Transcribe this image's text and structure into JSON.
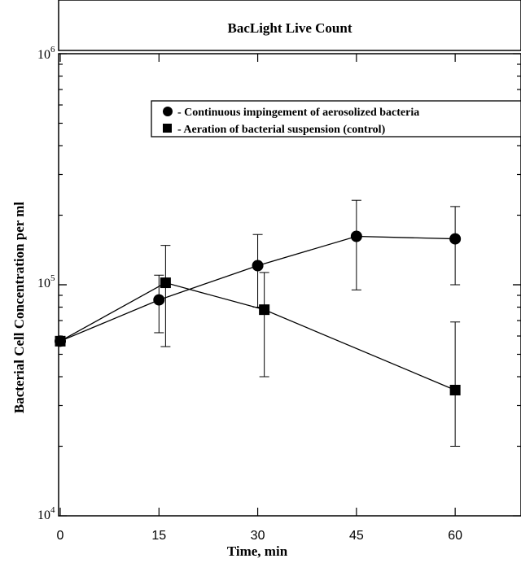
{
  "chart_data": {
    "type": "line",
    "title": "BacLight Live Count",
    "xlabel": "Time, min",
    "ylabel": "Bacterial Cell Concentration per ml",
    "x_ticks": [
      0,
      15,
      30,
      45,
      60
    ],
    "xlim": [
      0,
      70
    ],
    "ylim": [
      10000,
      1000000
    ],
    "y_scale": "log",
    "y_tick_labels": [
      {
        "base": "10",
        "exp": "4",
        "value": 10000
      },
      {
        "base": "10",
        "exp": "5",
        "value": 100000
      },
      {
        "base": "10",
        "exp": "6",
        "value": 1000000
      }
    ],
    "legend_position": "top-right",
    "series": [
      {
        "name": "- Continuous impingement of aerosolized bacteria",
        "marker": "circle",
        "color": "#000000",
        "points": [
          {
            "x": 0,
            "y": 57000,
            "err_low": 57000,
            "err_high": 57000
          },
          {
            "x": 15,
            "y": 86000,
            "err_low": 62000,
            "err_high": 110000
          },
          {
            "x": 30,
            "y": 121000,
            "err_low": 80000,
            "err_high": 165000
          },
          {
            "x": 45,
            "y": 162000,
            "err_low": 95000,
            "err_high": 232000
          },
          {
            "x": 60,
            "y": 158000,
            "err_low": 100000,
            "err_high": 218000
          }
        ]
      },
      {
        "name": "- Aeration of bacterial suspension (control)",
        "marker": "square",
        "color": "#000000",
        "points": [
          {
            "x": 0,
            "y": 57000,
            "err_low": 57000,
            "err_high": 57000
          },
          {
            "x": 16,
            "y": 102000,
            "err_low": 54000,
            "err_high": 148000
          },
          {
            "x": 31,
            "y": 78000,
            "err_low": 40000,
            "err_high": 113000
          },
          {
            "x": 60,
            "y": 35000,
            "err_low": 20000,
            "err_high": 69000
          }
        ]
      }
    ]
  }
}
